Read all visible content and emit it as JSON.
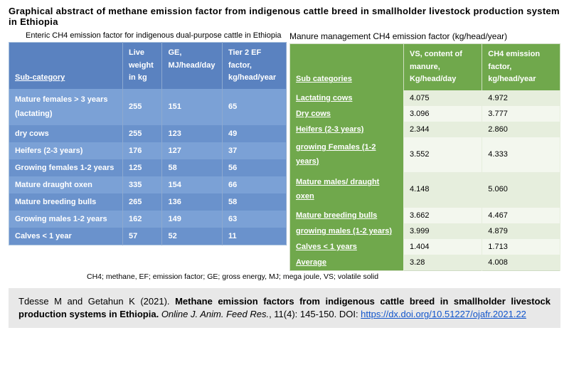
{
  "title": "Graphical abstract  of  methane emission factor from indigenous cattle breed in smallholder livestock production system in Ethiopia",
  "left": {
    "subtitle": "Enteric CH4 emission factor for indigenous dual-purpose cattle in Ethiopia",
    "headers": [
      "Sub-category",
      "Live weight in kg",
      "GE, MJ/head/day",
      "Tier 2 EF factor, kg/head/year"
    ],
    "rows": [
      [
        "Mature females > 3 years (lactating)",
        "255",
        "151",
        "65"
      ],
      [
        "dry cows",
        "255",
        "123",
        "49"
      ],
      [
        "Heifers (2-3 years)",
        "176",
        "127",
        "37"
      ],
      [
        "Growing females 1-2 years",
        "125",
        "58",
        "56"
      ],
      [
        "Mature draught oxen",
        "335",
        "154",
        "66"
      ],
      [
        "Mature breeding bulls",
        "265",
        "136",
        "58"
      ],
      [
        "Growing males 1-2 years",
        "162",
        "149",
        "63"
      ],
      [
        "Calves < 1 year",
        "57",
        "52",
        "11"
      ]
    ]
  },
  "right": {
    "subtitle": "Manure management CH4 emission factor (kg/head/year)",
    "headers": [
      "Sub categories",
      "VS, content of manure, Kg/head/day",
      "CH4 emission factor, kg/head/year"
    ],
    "rows": [
      [
        "Lactating cows",
        "4.075",
        "4.972"
      ],
      [
        "Dry cows",
        "3.096",
        "3.777"
      ],
      [
        "Heifers (2-3 years)",
        "2.344",
        "2.860"
      ],
      [
        "growing Females (1-2 years)",
        "3.552",
        "4.333"
      ],
      [
        "Mature males/ draught oxen",
        "4.148",
        "5.060"
      ],
      [
        "Mature breeding bulls",
        "3.662",
        "4.467"
      ],
      [
        "growing males (1-2 years)",
        "3.999",
        "4.879"
      ],
      [
        "Calves < 1 years",
        "1.404",
        "1.713"
      ],
      [
        "Average",
        "3.28",
        "4.008"
      ]
    ]
  },
  "footnote": "CH4; methane, EF; emission factor; GE; gross energy, MJ; mega joule, VS; volatile solid",
  "citation": {
    "authors": "Tdesse M and Getahun K (2021). ",
    "title": "Methane emission factors from indigenous cattle breed in smallholder livestock production systems in Ethiopia.",
    "journal": " Online J. Anim. Feed Res.",
    "pages": ", 11(4): 145-150. DOI: ",
    "doi": "https://dx.doi.org/10.51227/ojafr.2021.22"
  },
  "style": {
    "blue_header_bg": "#5a82c0",
    "blue_row_odd": "#7ba1d6",
    "blue_row_even": "#6a92cc",
    "green_header_bg": "#70a84c",
    "green_row_odd": "#e6eedd",
    "green_row_even": "#f3f7ee",
    "citation_bg": "#e8e8e8"
  }
}
